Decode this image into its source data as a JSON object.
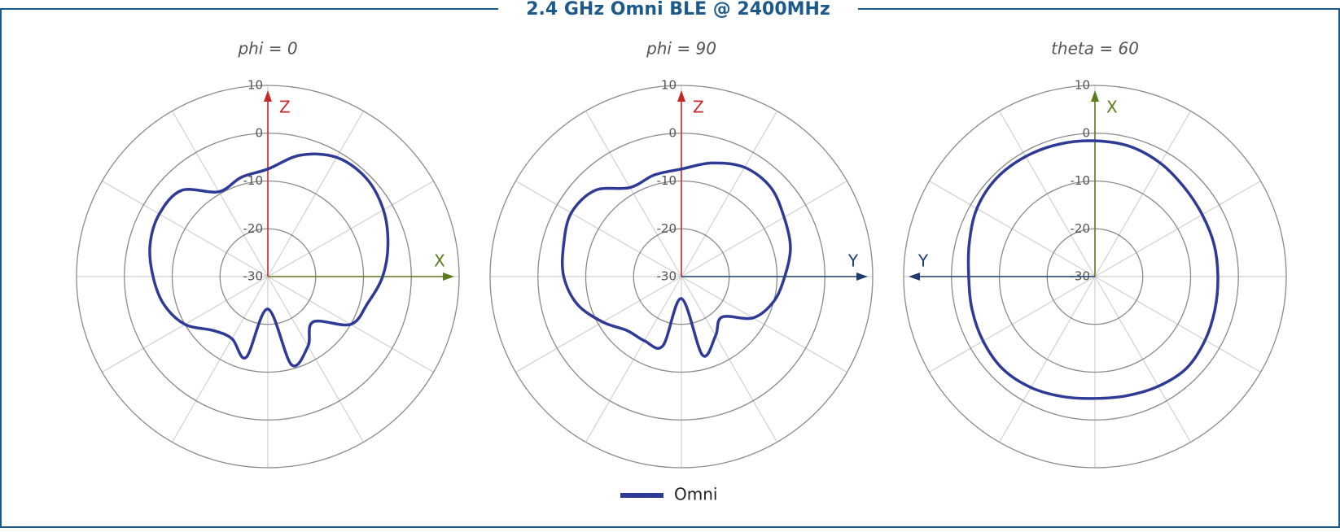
{
  "title": "2.4 GHz Omni BLE @ 2400MHz",
  "chart_data": [
    {
      "type": "polar",
      "title": "phi = 0",
      "theta": [
        0,
        15,
        30,
        45,
        60,
        75,
        90,
        105,
        120,
        135,
        150,
        165,
        180,
        195,
        210,
        225,
        240,
        255,
        270,
        285,
        300,
        315,
        330,
        345
      ],
      "series": [
        {
          "name": "Omni",
          "color": "#2e3a96",
          "values": [
            -7.5,
            -3.7,
            -1.2,
            -0.9,
            -2.1,
            -4,
            -6,
            -8.4,
            -10,
            -16.6,
            -13.2,
            -10.9,
            -23.2,
            -12.5,
            -15,
            -14,
            -10,
            -7.5,
            -6,
            -4.5,
            -3.8,
            -4.5,
            -9.5,
            -8.5
          ]
        }
      ],
      "rlim": [
        -30,
        10
      ],
      "rticks": [
        -30,
        -20,
        -10,
        0,
        10
      ],
      "thetaticks": [
        0,
        30,
        60,
        90,
        120,
        150,
        180,
        210,
        240,
        270,
        300,
        330
      ],
      "axes": [
        {
          "label": "Z",
          "color": "#c62828",
          "direction": "up"
        },
        {
          "label": "X",
          "color": "#5c7a1e",
          "direction": "right"
        }
      ]
    },
    {
      "type": "polar",
      "title": "phi = 90",
      "theta": [
        0,
        15,
        30,
        45,
        60,
        75,
        90,
        105,
        120,
        135,
        150,
        165,
        180,
        195,
        210,
        225,
        240,
        255,
        270,
        285,
        300,
        315,
        330,
        345
      ],
      "series": [
        {
          "color": "#2e3a96",
          "values": [
            -7.5,
            -5.4,
            -3.6,
            -3.6,
            -5.2,
            -6.4,
            -8.4,
            -10,
            -12.7,
            -18,
            -15.7,
            -13,
            -25.4,
            -15,
            -14.5,
            -14,
            -11,
            -7.5,
            -5.4,
            -4.5,
            -3.4,
            -4.5,
            -8.5,
            -8
          ]
        }
      ],
      "rlim": [
        -30,
        10
      ],
      "rticks": [
        -30,
        -20,
        -10,
        0,
        10
      ],
      "thetaticks": [
        0,
        30,
        60,
        90,
        120,
        150,
        180,
        210,
        240,
        270,
        300,
        330
      ],
      "axes": [
        {
          "label": "Z",
          "color": "#c62828",
          "direction": "up"
        },
        {
          "label": "Y",
          "color": "#1f3c6e",
          "direction": "right"
        }
      ]
    },
    {
      "type": "polar",
      "title": "theta = 60",
      "theta": [
        0,
        15,
        30,
        45,
        60,
        75,
        90,
        105,
        120,
        135,
        150,
        165,
        180,
        195,
        210,
        225,
        240,
        255,
        270,
        285,
        300,
        315,
        330,
        345
      ],
      "series": [
        {
          "color": "#2e3a96",
          "values": [
            -1.6,
            -1.8,
            -2.6,
            -3.6,
            -4.1,
            -4.2,
            -4.3,
            -4,
            -3.4,
            -2.9,
            -3.5,
            -4.2,
            -4.5,
            -4,
            -3.2,
            -2.7,
            -3,
            -3.4,
            -3.6,
            -2.8,
            -1.5,
            -0.9,
            -1,
            -1.3
          ]
        }
      ],
      "rlim": [
        -30,
        10
      ],
      "rticks": [
        -30,
        -20,
        -10,
        0,
        10
      ],
      "thetaticks": [
        0,
        30,
        60,
        90,
        120,
        150,
        180,
        210,
        240,
        270,
        300,
        330
      ],
      "axes": [
        {
          "label": "X",
          "color": "#5c7a1e",
          "direction": "up"
        },
        {
          "label": "Y",
          "color": "#1f3c6e",
          "direction": "left"
        }
      ]
    }
  ]
}
